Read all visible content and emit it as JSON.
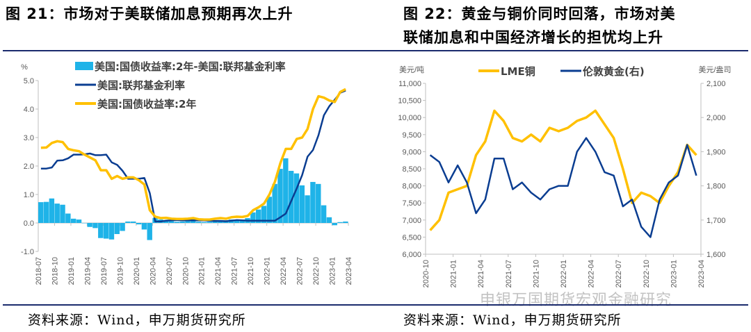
{
  "left_title": "图 21：市场对于美联储加息预期再次上升",
  "right_title_line1": "图 22：黄金与铜价同时回落，市场对美",
  "right_title_line2": "联储加息和中国经济增长的担忧均上升",
  "left_source": "资料来源：Wind，申万期货研究所",
  "right_source": "资料来源：Wind，申万期货研究所",
  "watermark": "申银万国期货宏观金融研究",
  "colors": {
    "spread": "#1FB3E8",
    "fed": "#0A3D91",
    "yield2y": "#FFC000",
    "copper": "#FFC000",
    "gold": "#0A3D91",
    "rule": "#1a2a6c"
  },
  "chart_data": [
    {
      "type": "bar+line",
      "ylabel": "%",
      "ylim": [
        -1.0,
        5.0
      ],
      "yticks": [
        "5.0",
        "4.0",
        "3.0",
        "2.0",
        "1.0",
        "0.0",
        "-1.0"
      ],
      "xticks": [
        "2018-07",
        "2018-10",
        "2019-01",
        "2019-04",
        "2019-07",
        "2019-10",
        "2020-01",
        "2020-04",
        "2020-07",
        "2020-10",
        "2021-01",
        "2021-04",
        "2021-07",
        "2021-10",
        "2022-01",
        "2022-04",
        "2022-07",
        "2022-10",
        "2023-01",
        "2023-04"
      ],
      "legend_placement": "top",
      "x_start": "2018-07",
      "series": [
        {
          "name": "美国:国债收益率:2年-美国:联邦基金利率",
          "kind": "bar",
          "values": [
            0.73,
            0.74,
            0.86,
            0.68,
            0.64,
            0.33,
            0.15,
            0.12,
            -0.01,
            -0.14,
            -0.18,
            -0.53,
            -0.55,
            -0.58,
            -0.39,
            -0.28,
            0.05,
            0.05,
            -0.05,
            -0.23,
            -0.6,
            0.17,
            0.12,
            0.1,
            0.06,
            0.04,
            0.05,
            0.06,
            0.08,
            0.04,
            0.03,
            0.04,
            0.08,
            0.1,
            0.09,
            0.12,
            0.12,
            0.12,
            0.17,
            0.37,
            0.47,
            0.6,
            0.92,
            1.37,
            1.9,
            2.27,
            1.83,
            1.74,
            1.32,
            0.97,
            1.44,
            1.37,
            0.62,
            0.2,
            -0.08,
            0.03,
            0.05
          ]
        },
        {
          "name": "美国:联邦基金利率",
          "kind": "line",
          "values": [
            1.91,
            1.91,
            1.95,
            2.19,
            2.2,
            2.27,
            2.4,
            2.4,
            2.41,
            2.44,
            2.38,
            2.38,
            2.4,
            2.13,
            2.04,
            1.83,
            1.55,
            1.55,
            1.55,
            1.58,
            1.05,
            0.05,
            0.05,
            0.08,
            0.09,
            0.1,
            0.09,
            0.09,
            0.09,
            0.09,
            0.09,
            0.08,
            0.07,
            0.07,
            0.06,
            0.08,
            0.1,
            0.09,
            0.08,
            0.08,
            0.08,
            0.08,
            0.08,
            0.08,
            0.2,
            0.33,
            0.77,
            1.21,
            1.68,
            2.33,
            2.56,
            3.08,
            3.78,
            4.1,
            4.33,
            4.57,
            4.65
          ]
        },
        {
          "name": "美国:国债收益率:2年",
          "kind": "line",
          "values": [
            2.64,
            2.65,
            2.81,
            2.87,
            2.84,
            2.6,
            2.55,
            2.52,
            2.4,
            2.3,
            2.2,
            1.85,
            1.85,
            1.55,
            1.65,
            1.55,
            1.6,
            1.6,
            1.5,
            1.35,
            0.45,
            0.22,
            0.17,
            0.18,
            0.15,
            0.14,
            0.14,
            0.15,
            0.17,
            0.13,
            0.12,
            0.12,
            0.15,
            0.17,
            0.15,
            0.2,
            0.22,
            0.21,
            0.25,
            0.45,
            0.55,
            0.68,
            1.0,
            1.45,
            2.1,
            2.6,
            2.6,
            2.95,
            3.0,
            3.3,
            4.0,
            4.45,
            4.4,
            4.3,
            4.25,
            4.6,
            4.7
          ]
        }
      ]
    },
    {
      "type": "line",
      "ylabel": "美元/吨",
      "ylabel_right": "美元/盎司",
      "ylim": [
        6000,
        11000
      ],
      "ylim_right": [
        1600,
        2100
      ],
      "yticks": [
        "11,000",
        "10,500",
        "10,000",
        "9,500",
        "9,000",
        "8,500",
        "8,000",
        "7,500",
        "7,000",
        "6,500",
        "6,000"
      ],
      "yticks_right": [
        "2,100",
        "2,000",
        "1,900",
        "1,800",
        "1,700",
        "1,600"
      ],
      "xticks": [
        "2020-10",
        "2021-01",
        "2021-04",
        "2021-07",
        "2021-10",
        "2022-01",
        "2022-04",
        "2022-07",
        "2022-10",
        "2023-01",
        "2023-04"
      ],
      "legend_placement": "top",
      "x_start": "2020-10",
      "series": [
        {
          "name": "LME铜",
          "axis": "left",
          "values": [
            6700,
            7000,
            7800,
            7900,
            8000,
            8900,
            9300,
            10200,
            9900,
            9400,
            9300,
            9500,
            9300,
            9700,
            9600,
            9700,
            9900,
            10000,
            10200,
            9800,
            9400,
            8500,
            7500,
            7800,
            7700,
            7500,
            8000,
            8400,
            9200,
            8900
          ]
        },
        {
          "name": "伦敦黄金(右)",
          "axis": "right",
          "values": [
            1890,
            1870,
            1810,
            1860,
            1810,
            1720,
            1760,
            1880,
            1880,
            1790,
            1810,
            1780,
            1760,
            1790,
            1800,
            1800,
            1900,
            1940,
            1900,
            1840,
            1830,
            1740,
            1760,
            1680,
            1650,
            1760,
            1810,
            1830,
            1920,
            1830
          ]
        }
      ]
    }
  ]
}
